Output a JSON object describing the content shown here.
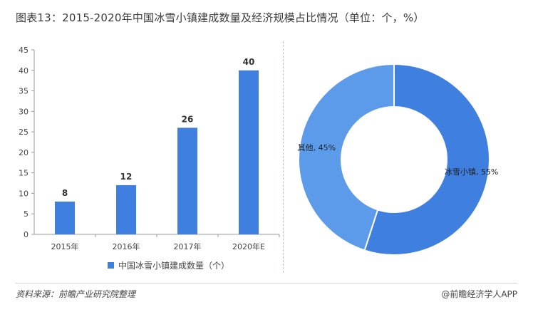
{
  "title": "图表13：2015-2020年中国冰雪小镇建成数量及经济规模占比情况（单位：个，%）",
  "source": "资料来源：前瞻产业研究院整理",
  "credit": "@前瞻经济学人APP",
  "colors": {
    "bar": "#3f7fe0",
    "slice_main": "#3f7fe0",
    "slice_other": "#5b9bea"
  },
  "chart_data": [
    {
      "type": "bar",
      "categories": [
        "2015年",
        "2016年",
        "2017年",
        "2020年E"
      ],
      "series": [
        {
          "name": "中国冰雪小镇建成数量（个）",
          "values": [
            8,
            12,
            26,
            40
          ]
        }
      ],
      "yticks": [
        0,
        5,
        10,
        15,
        20,
        25,
        30,
        35,
        40,
        45
      ],
      "ylim": [
        0,
        45
      ],
      "legend": "bottom",
      "grid": false
    },
    {
      "type": "pie",
      "donut": true,
      "slices": [
        {
          "label": "冰雪小镇, 55%",
          "value": 55
        },
        {
          "label": "其他, 45%",
          "value": 45
        }
      ]
    }
  ]
}
